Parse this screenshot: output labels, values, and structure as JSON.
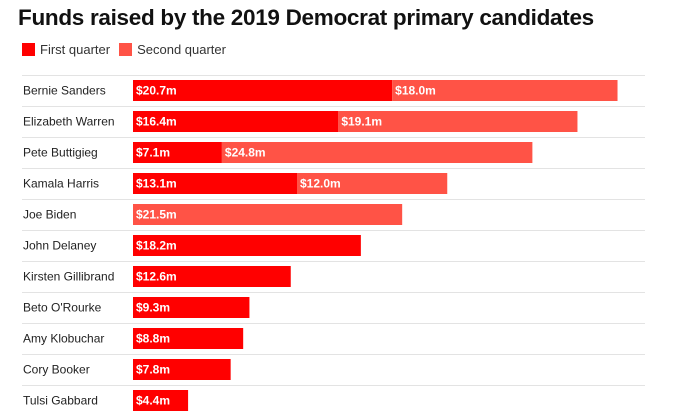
{
  "chart_data": {
    "type": "bar",
    "orientation": "horizontal",
    "stacked": true,
    "title": "Funds raised by the 2019 Democrat primary candidates",
    "categories": [
      "Bernie Sanders",
      "Elizabeth Warren",
      "Pete Buttigieg",
      "Kamala Harris",
      "Joe Biden",
      "John Delaney",
      "Kirsten Gillibrand",
      "Beto O'Rourke",
      "Amy Klobuchar",
      "Cory Booker",
      "Tulsi Gabbard"
    ],
    "series": [
      {
        "name": "First quarter",
        "color": "#ff0000",
        "values": [
          20.7,
          16.4,
          7.1,
          13.1,
          null,
          18.2,
          12.6,
          9.3,
          8.8,
          7.8,
          4.4
        ],
        "labels": [
          "$20.7m",
          "$16.4m",
          "$7.1m",
          "$13.1m",
          "",
          "$18.2m",
          "$12.6m",
          "$9.3m",
          "$8.8m",
          "$7.8m",
          "$4.4m"
        ]
      },
      {
        "name": "Second quarter",
        "color": "#ff5346",
        "values": [
          18.0,
          19.1,
          24.8,
          12.0,
          21.5,
          null,
          null,
          null,
          null,
          null,
          null
        ],
        "labels": [
          "$18.0m",
          "$19.1m",
          "$24.8m",
          "$12.0m",
          "$21.5m",
          "",
          "",
          "",
          "",
          "",
          ""
        ]
      }
    ],
    "legend_position": "top-left",
    "grid": false,
    "row_dividers": true
  }
}
